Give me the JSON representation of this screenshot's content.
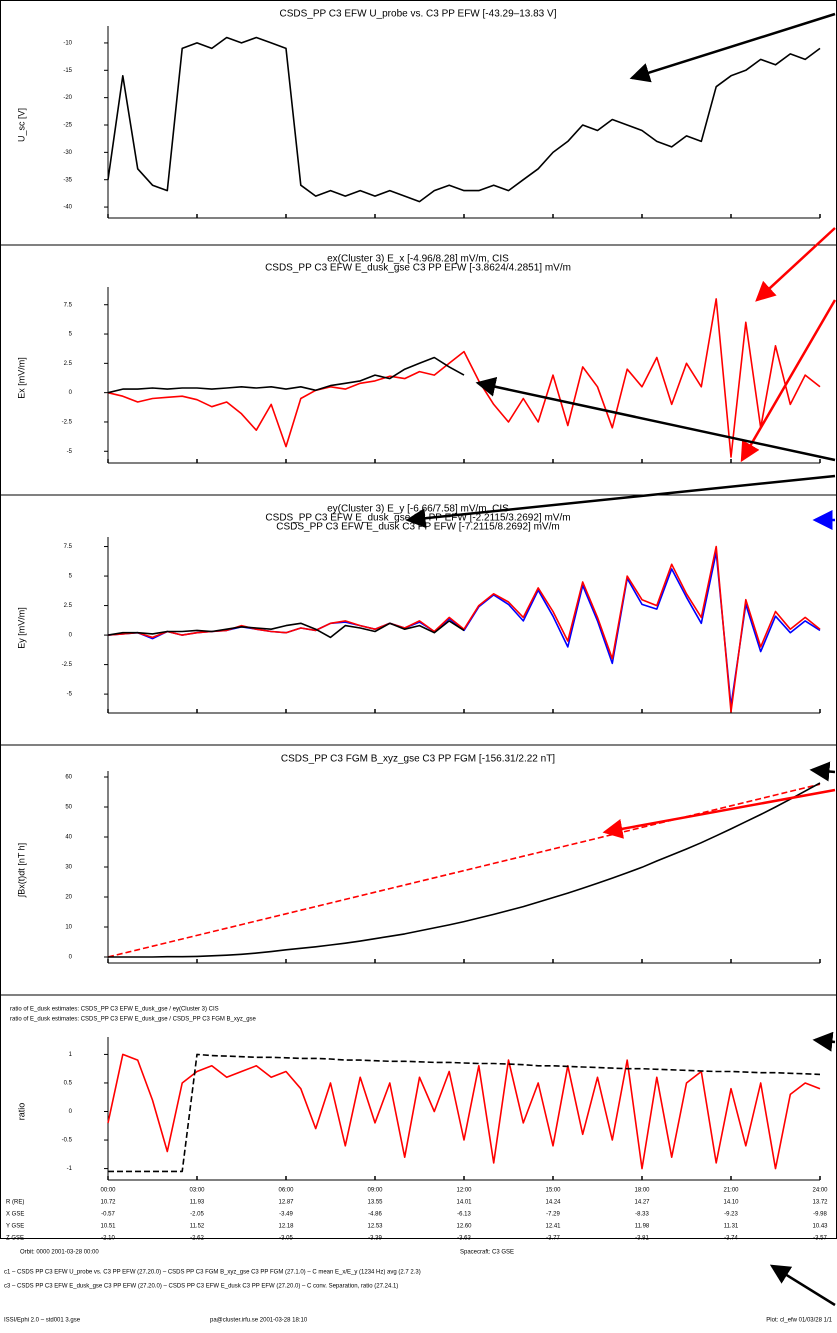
{
  "chart_data": [
    {
      "type": "line",
      "titles": [
        {
          "text": "CSDS_PP C3 EFW U_probe vs. C3 PP EFW [-43.29–13.83 V]",
          "color": "#000000"
        }
      ],
      "ylabel": "U_sc [V]",
      "ylabel_color": "#000000",
      "x": [
        0,
        0.5,
        1,
        1.5,
        2,
        2.5,
        3,
        3.5,
        4,
        4.5,
        5,
        5.5,
        6,
        6.5,
        7,
        7.5,
        8,
        8.5,
        9,
        9.5,
        10,
        10.5,
        11,
        11.5,
        12,
        12.5,
        13,
        13.5,
        14,
        14.5,
        15,
        15.5,
        16,
        16.5,
        17,
        17.5,
        18,
        18.5,
        19,
        19.5,
        20,
        20.5,
        21,
        21.5,
        22,
        22.5,
        23,
        23.5,
        24
      ],
      "xlim": [
        0,
        24
      ],
      "xticks": [
        0,
        3,
        6,
        9,
        12,
        15,
        18,
        21,
        24
      ],
      "ylim": [
        -42,
        -8
      ],
      "yticks": [
        -40,
        -35,
        -30,
        -25,
        -20,
        -15,
        -10
      ],
      "series": [
        {
          "name": "U_probe",
          "color": "#000000",
          "dash": false,
          "values": [
            -35,
            -16,
            -33,
            -36,
            -37,
            -11,
            -10,
            -11,
            -9,
            -10,
            -9,
            -10,
            -11,
            -36,
            -38,
            -37,
            -38,
            -37,
            -38,
            -37,
            -38,
            -39,
            -37,
            -36,
            -37,
            -37,
            -36,
            -37,
            -35,
            -33,
            -30,
            -28,
            -25,
            -26,
            -24,
            -25,
            -26,
            -28,
            -29,
            -27,
            -28,
            -18,
            -16,
            -15,
            -13,
            -14,
            -12,
            -13,
            -11
          ]
        }
      ]
    },
    {
      "type": "line",
      "titles": [
        {
          "text": "ex(Cluster 3) E_x [-4.96/8.28] mV/m, CIS",
          "color": "#ff0000"
        },
        {
          "text": "CSDS_PP C3 EFW E_dusk_gse C3 PP EFW [-3.8624/4.2851] mV/m",
          "color": "#000000"
        }
      ],
      "ylabel": "Ex [mV/m]",
      "ylabel_color": "#ff0000",
      "x": [
        0,
        0.5,
        1,
        1.5,
        2,
        2.5,
        3,
        3.5,
        4,
        4.5,
        5,
        5.5,
        6,
        6.5,
        7,
        7.5,
        8,
        8.5,
        9,
        9.5,
        10,
        10.5,
        11,
        11.5,
        12,
        12.5,
        13,
        13.5,
        14,
        14.5,
        15,
        15.5,
        16,
        16.5,
        17,
        17.5,
        18,
        18.5,
        19,
        19.5,
        20,
        20.5,
        21,
        21.5,
        22,
        22.5,
        23,
        23.5,
        24
      ],
      "xlim": [
        0,
        24
      ],
      "xticks": [
        0,
        3,
        6,
        9,
        12,
        15,
        18,
        21,
        24
      ],
      "ylim": [
        -6,
        8.5
      ],
      "yticks": [
        -5,
        -2.5,
        0,
        2.5,
        5,
        7.5
      ],
      "series": [
        {
          "name": "CIS",
          "color": "#ff0000",
          "dash": false,
          "values": [
            0,
            -0.3,
            -0.8,
            -0.5,
            -0.4,
            -0.3,
            -0.6,
            -1.2,
            -0.8,
            -1.8,
            -3.2,
            -1.0,
            -4.6,
            -0.5,
            0.2,
            0.5,
            0.3,
            0.8,
            1,
            1.4,
            1.2,
            1.8,
            1.5,
            2.5,
            3.5,
            1,
            -1,
            -2.5,
            -0.5,
            -2.5,
            1.5,
            -2.8,
            2.2,
            0.5,
            -3,
            2,
            0.5,
            3,
            -1,
            2.5,
            0.5,
            8,
            -5.5,
            6,
            -3,
            4,
            -1,
            1.5,
            0.5
          ]
        },
        {
          "name": "EFW",
          "color": "#000000",
          "dash": false,
          "values": [
            0,
            0.3,
            0.3,
            0.4,
            0.3,
            0.4,
            0.4,
            0.3,
            0.4,
            0.5,
            0.4,
            0.5,
            0.3,
            0.5,
            0.2,
            0.6,
            0.8,
            1,
            1.5,
            1.2,
            2,
            2.5,
            3,
            2.2,
            1.5,
            null,
            null,
            null,
            null,
            null,
            null,
            null,
            null,
            null,
            null,
            null,
            null,
            null,
            null,
            null,
            null,
            null,
            null,
            null,
            null,
            null,
            null,
            null,
            null
          ]
        }
      ]
    },
    {
      "type": "line",
      "titles": [
        {
          "text": "ey(Cluster 3) E_y [-6.66/7.58] mV/m, CIS",
          "color": "#ff0000"
        },
        {
          "text": "CSDS_PP C3 EFW E_dusk_gse C3 PP EFW [-2.2115/3.2692] mV/m",
          "color": "#000000"
        },
        {
          "text": "CSDS_PP C3 EFW E_dusk C3 PP EFW [-7.2115/8.2692] mV/m",
          "color": "#0000ff"
        }
      ],
      "ylabel": "Ey [mV/m]",
      "ylabel_color": "#0000ff",
      "x": [
        0,
        0.5,
        1,
        1.5,
        2,
        2.5,
        3,
        3.5,
        4,
        4.5,
        5,
        5.5,
        6,
        6.5,
        7,
        7.5,
        8,
        8.5,
        9,
        9.5,
        10,
        10.5,
        11,
        11.5,
        12,
        12.5,
        13,
        13.5,
        14,
        14.5,
        15,
        15.5,
        16,
        16.5,
        17,
        17.5,
        18,
        18.5,
        19,
        19.5,
        20,
        20.5,
        21,
        21.5,
        22,
        22.5,
        23,
        23.5,
        24
      ],
      "xlim": [
        0,
        24
      ],
      "xticks": [
        0,
        3,
        6,
        9,
        12,
        15,
        18,
        21,
        24
      ],
      "ylim": [
        -6.6,
        7.8
      ],
      "yticks": [
        -5,
        -2.5,
        0,
        2.5,
        5,
        7.5
      ],
      "series": [
        {
          "name": "E_dusk",
          "color": "#0000ff",
          "dash": false,
          "values": [
            0,
            0.1,
            0.2,
            -0.3,
            0.3,
            0,
            0.2,
            0.3,
            0.4,
            0.7,
            0.5,
            0.3,
            0.2,
            0.6,
            0.4,
            1,
            1.1,
            0.8,
            0.5,
            1,
            0.6,
            1.1,
            0.3,
            1.4,
            0.4,
            2.4,
            3.4,
            2.6,
            1.2,
            3.8,
            1.6,
            -1,
            4.2,
            1.2,
            -2.4,
            4.8,
            2.6,
            2.2,
            5.6,
            3.2,
            1,
            7,
            -6,
            2.6,
            -1.4,
            1.6,
            0.2,
            1.2,
            0.4
          ]
        },
        {
          "name": "CIS",
          "color": "#ff0000",
          "dash": false,
          "values": [
            0,
            0.1,
            0.2,
            -0.2,
            0.3,
            0,
            0.2,
            0.3,
            0.4,
            0.8,
            0.5,
            0.3,
            0.2,
            0.6,
            0.4,
            1,
            1.2,
            0.8,
            0.5,
            1,
            0.6,
            1.2,
            0.3,
            1.5,
            0.5,
            2.5,
            3.5,
            2.8,
            1.5,
            4,
            2,
            -0.5,
            4.5,
            1.5,
            -2,
            5,
            3,
            2.5,
            6,
            3.5,
            1.5,
            7.5,
            -6.5,
            3,
            -1,
            2,
            0.5,
            1.5,
            0.5
          ]
        },
        {
          "name": "EFW",
          "color": "#000000",
          "dash": false,
          "values": [
            0,
            0.2,
            0.2,
            0.1,
            0.3,
            0.3,
            0.4,
            0.3,
            0.5,
            0.7,
            0.6,
            0.5,
            0.8,
            1,
            0.5,
            -0.2,
            0.8,
            0.6,
            0.3,
            1,
            0.5,
            0.8,
            0.2,
            1.2,
            0.4,
            null,
            null,
            null,
            null,
            null,
            null,
            null,
            null,
            null,
            null,
            null,
            null,
            null,
            null,
            null,
            null,
            null,
            null,
            null,
            null,
            null,
            null,
            null,
            null
          ]
        }
      ]
    },
    {
      "type": "line",
      "titles": [
        {
          "text": "CSDS_PP C3 FGM B_xyz_gse C3 PP FGM [-156.31/2.22 nT]",
          "color": "#ff0000"
        }
      ],
      "ylabel": "∫Bx(t)dt [nT h]",
      "ylabel_color": "#000000",
      "x": [
        0,
        0.5,
        1,
        1.5,
        2,
        2.5,
        3,
        3.5,
        4,
        4.5,
        5,
        5.5,
        6,
        6.5,
        7,
        7.5,
        8,
        8.5,
        9,
        9.5,
        10,
        10.5,
        11,
        11.5,
        12,
        12.5,
        13,
        13.5,
        14,
        14.5,
        15,
        15.5,
        16,
        16.5,
        17,
        17.5,
        18,
        18.5,
        19,
        19.5,
        20,
        20.5,
        21,
        21.5,
        22,
        22.5,
        23,
        23.5,
        24
      ],
      "xlim": [
        0,
        24
      ],
      "xticks": [
        0,
        3,
        6,
        9,
        12,
        15,
        18,
        21,
        24
      ],
      "ylim": [
        -2,
        60
      ],
      "yticks": [
        0,
        10,
        20,
        30,
        40,
        50,
        60
      ],
      "series": [
        {
          "name": "FGM",
          "color": "#ff0000",
          "dash": true,
          "values": [
            0,
            1.2,
            2.4,
            3.6,
            4.8,
            6,
            7.2,
            8.4,
            9.6,
            10.8,
            12,
            13.2,
            14.4,
            15.6,
            16.8,
            18,
            19.2,
            20.4,
            21.6,
            22.8,
            24,
            25.2,
            26.4,
            27.6,
            28.8,
            30,
            31.2,
            32.4,
            33.6,
            34.8,
            36,
            37.2,
            38.4,
            39.6,
            40.8,
            42,
            43.2,
            44.4,
            45.6,
            46.8,
            48,
            49.2,
            50.4,
            51.6,
            52.8,
            54,
            55.2,
            56.4,
            57.6
          ]
        },
        {
          "name": "EFW",
          "color": "#000000",
          "dash": false,
          "values": [
            0,
            0,
            0,
            0,
            0.1,
            0.1,
            0.2,
            0.4,
            0.6,
            0.9,
            1.3,
            1.8,
            2.4,
            2.9,
            3.4,
            4.0,
            4.6,
            5.3,
            6.1,
            6.9,
            7.7,
            8.7,
            9.7,
            10.7,
            11.8,
            13,
            14.2,
            15.5,
            16.8,
            18.3,
            19.8,
            21.3,
            22.9,
            24.6,
            26.3,
            28.1,
            29.9,
            32,
            34,
            36,
            38.1,
            40.4,
            42.7,
            45.1,
            47.5,
            50,
            52.6,
            55.3,
            58
          ]
        }
      ]
    },
    {
      "type": "line",
      "titles": [
        {
          "text": "ratio of E_dusk estimates: CSDS_PP C3 EFW E_dusk_gse / ey(Cluster 3) CIS",
          "color": "#ff0000"
        },
        {
          "text": "ratio of E_dusk estimates: CSDS_PP C3 EFW E_dusk_gse / CSDS_PP C3 FGM B_xyz_gse",
          "color": "#000000"
        }
      ],
      "ylabel": "ratio",
      "ylabel_color": "#ff0000",
      "x": [
        0,
        0.5,
        1,
        1.5,
        2,
        2.5,
        3,
        3.5,
        4,
        4.5,
        5,
        5.5,
        6,
        6.5,
        7,
        7.5,
        8,
        8.5,
        9,
        9.5,
        10,
        10.5,
        11,
        11.5,
        12,
        12.5,
        13,
        13.5,
        14,
        14.5,
        15,
        15.5,
        16,
        16.5,
        17,
        17.5,
        18,
        18.5,
        19,
        19.5,
        20,
        20.5,
        21,
        21.5,
        22,
        22.5,
        23,
        23.5,
        24
      ],
      "xlim": [
        0,
        24
      ],
      "xticks": [
        {
          "value": 0,
          "label": "00:00"
        },
        {
          "value": 3,
          "label": "03:00"
        },
        {
          "value": 6,
          "label": "06:00"
        },
        {
          "value": 9,
          "label": "09:00"
        },
        {
          "value": 12,
          "label": "12:00"
        },
        {
          "value": 15,
          "label": "15:00"
        },
        {
          "value": 18,
          "label": "18:00"
        },
        {
          "value": 21,
          "label": "21:00"
        },
        {
          "value": 24,
          "label": "24:00"
        }
      ],
      "ylim": [
        -1.2,
        1.2
      ],
      "yticks": [
        -1,
        -0.5,
        0,
        0.5,
        1
      ],
      "series": [
        {
          "name": "CIS ratio",
          "color": "#ff0000",
          "dash": false,
          "values": [
            -0.2,
            1.0,
            0.9,
            0.2,
            -0.7,
            0.5,
            0.7,
            0.8,
            0.6,
            0.7,
            0.8,
            0.6,
            0.7,
            0.4,
            -0.3,
            0.5,
            -0.6,
            0.6,
            -0.2,
            0.5,
            -0.8,
            0.6,
            0,
            0.7,
            -0.5,
            0.8,
            -0.9,
            0.9,
            -0.2,
            0.5,
            -0.6,
            0.8,
            -0.4,
            0.6,
            -0.5,
            0.9,
            -1.0,
            0.6,
            -0.8,
            0.5,
            0.7,
            -0.9,
            0.4,
            -0.6,
            0.5,
            -1.0,
            0.3,
            0.5,
            0.4
          ]
        },
        {
          "name": "FGM ratio",
          "color": "#000000",
          "dash": true,
          "values": [
            -1.05,
            -1.05,
            -1.05,
            -1.05,
            -1.05,
            -1.05,
            1.0,
            0.98,
            0.97,
            0.96,
            0.95,
            0.95,
            0.94,
            0.93,
            0.93,
            0.92,
            0.9,
            0.9,
            0.89,
            0.88,
            0.88,
            0.87,
            0.86,
            0.86,
            0.85,
            0.84,
            0.84,
            0.83,
            0.82,
            0.8,
            0.8,
            0.79,
            0.78,
            0.77,
            0.76,
            0.75,
            0.75,
            0.74,
            0.73,
            0.72,
            0.71,
            0.7,
            0.7,
            0.69,
            0.68,
            0.68,
            0.67,
            0.66,
            0.65
          ]
        }
      ]
    }
  ],
  "ephemeris": [
    {
      "label": "R (RE)",
      "values": [
        "10.72",
        "11.93",
        "12.87",
        "13.55",
        "14.01",
        "14.24",
        "14.27",
        "14.10",
        "13.72"
      ]
    },
    {
      "label": "X GSE",
      "values": [
        "-0.57",
        "-2.05",
        "-3.49",
        "-4.86",
        "-6.13",
        "-7.29",
        "-8.33",
        "-9.23",
        "-9.98"
      ]
    },
    {
      "label": "Y GSE",
      "values": [
        "10.51",
        "11.52",
        "12.18",
        "12.53",
        "12.60",
        "12.41",
        "11.98",
        "11.31",
        "10.43"
      ]
    },
    {
      "label": "Z GSE",
      "values": [
        "-2.10",
        "-2.62",
        "-3.05",
        "-3.39",
        "-3.63",
        "-3.77",
        "-3.81",
        "-3.74",
        "-3.57"
      ]
    }
  ],
  "footer": {
    "notes": [
      "Orbit: 0000 2001-03-28 00:00",
      "Spacecraft: C3 GSE"
    ],
    "legend_lines": [
      "c1 – CSDS PP C3 EFW U_probe vs. C3 PP EFW (27.20.0) – CSDS PP C3 FGM B_xyz_gse C3 PP FGM (27.1.0) – C mean E_x/E_y (1234 Hz) avg (2.7 2.3)",
      "c3 – CSDS PP C3 EFW E_dusk_gse C3 PP EFW (27.20.0) – CSDS PP C3 EFW E_dusk C3 PP EFW (27.20.0) – C conv. Separation, ratio (27.24.1)"
    ],
    "left": "ISSI/Ephi 2.0 – std001 3.gse",
    "middle": "pa@cluster.irfu.se 2001-03-28 18:10",
    "right": "Plot: cl_efw 01/03/28 1/1"
  }
}
